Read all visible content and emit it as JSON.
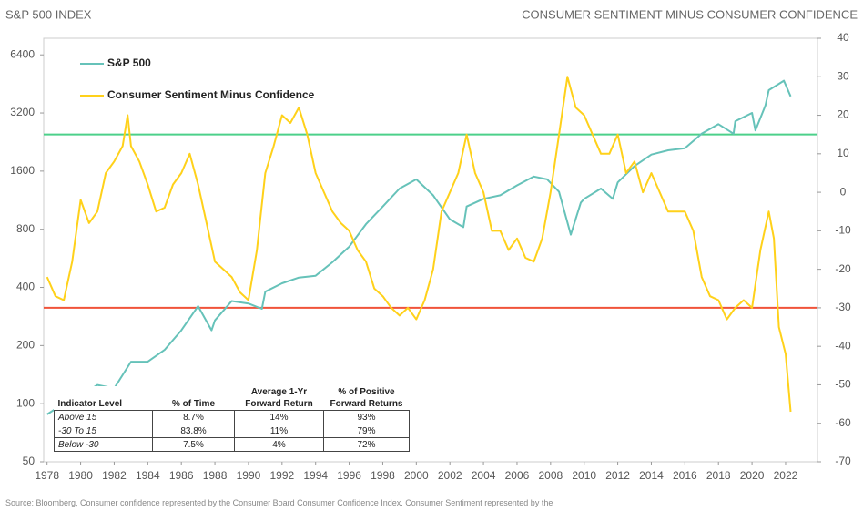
{
  "chart_data": {
    "type": "line",
    "title": "S&P 500 INDEX",
    "y2_title": "CONSUMER SENTIMENT MINUS CONSUMER CONFIDENCE",
    "source": "Source: Bloomberg, Consumer confidence represented by the Consumer Board Consumer Confidence Index. Consumer Sentiment represented by the",
    "xlim": [
      1977.8,
      2023.9
    ],
    "xticks": [
      1978,
      1980,
      1982,
      1984,
      1986,
      1988,
      1990,
      1992,
      1994,
      1996,
      1998,
      2000,
      2002,
      2004,
      2006,
      2008,
      2010,
      2012,
      2014,
      2016,
      2018,
      2020,
      2022
    ],
    "ylim": [
      50,
      7800
    ],
    "yticks": [
      50,
      100,
      200,
      400,
      800,
      1600,
      3200,
      6400
    ],
    "y_scale": "log",
    "y2lim": [
      -70,
      40
    ],
    "y2ticks": [
      -70,
      -60,
      -50,
      -40,
      -30,
      -20,
      -10,
      0,
      10,
      20,
      30,
      40
    ],
    "reference_lines": [
      {
        "value": 15,
        "axis": "y2",
        "color": "#4cd08a"
      },
      {
        "value": -30,
        "axis": "y2",
        "color": "#f0533a"
      }
    ],
    "series": [
      {
        "name": "S&P 500",
        "color": "#66c2b9",
        "axis": "y",
        "x": [
          1978,
          1979,
          1980,
          1981,
          1982,
          1983,
          1984,
          1985,
          1986,
          1987,
          1987.8,
          1988,
          1989,
          1990,
          1990.8,
          1991,
          1992,
          1993,
          1994,
          1995,
          1996,
          1997,
          1998,
          1999,
          2000,
          2001,
          2002,
          2002.8,
          2003,
          2004,
          2005,
          2006,
          2007,
          2007.8,
          2008.5,
          2009.2,
          2009.8,
          2010,
          2011,
          2011.7,
          2012,
          2013,
          2014,
          2015,
          2016,
          2017,
          2018,
          2018.9,
          2019,
          2020,
          2020.2,
          2020.8,
          2021,
          2021.9,
          2022.3
        ],
        "values": [
          88,
          100,
          110,
          125,
          120,
          165,
          165,
          190,
          240,
          320,
          240,
          270,
          340,
          330,
          310,
          380,
          420,
          450,
          460,
          540,
          650,
          850,
          1050,
          1300,
          1450,
          1200,
          900,
          820,
          1050,
          1150,
          1200,
          1350,
          1500,
          1450,
          1250,
          750,
          1100,
          1150,
          1300,
          1150,
          1400,
          1700,
          1950,
          2050,
          2100,
          2500,
          2800,
          2500,
          2900,
          3200,
          2600,
          3500,
          4200,
          4700,
          3900
        ]
      },
      {
        "name": "Consumer Sentiment Minus Confidence",
        "color": "#ffd11a",
        "axis": "y2",
        "x": [
          1978,
          1978.5,
          1979,
          1979.5,
          1980,
          1980.5,
          1981,
          1981.5,
          1982,
          1982.5,
          1982.8,
          1983,
          1983.5,
          1984,
          1984.5,
          1985,
          1985.5,
          1986,
          1986.5,
          1987,
          1987.5,
          1988,
          1988.5,
          1989,
          1989.5,
          1990,
          1990.5,
          1991,
          1991.5,
          1992,
          1992.5,
          1993,
          1993.5,
          1994,
          1994.5,
          1995,
          1995.5,
          1996,
          1996.5,
          1997,
          1997.5,
          1998,
          1998.5,
          1999,
          1999.5,
          2000,
          2000.5,
          2001,
          2001.5,
          2002,
          2002.5,
          2003,
          2003.5,
          2004,
          2004.5,
          2005,
          2005.5,
          2006,
          2006.5,
          2007,
          2007.5,
          2008,
          2008.5,
          2009,
          2009.5,
          2010,
          2010.5,
          2011,
          2011.5,
          2012,
          2012.5,
          2013,
          2013.5,
          2014,
          2014.5,
          2015,
          2015.5,
          2016,
          2016.5,
          2017,
          2017.5,
          2018,
          2018.5,
          2019,
          2019.5,
          2020,
          2020.5,
          2021,
          2021.3,
          2021.6,
          2022,
          2022.3
        ],
        "values": [
          -22,
          -27,
          -28,
          -18,
          -2,
          -8,
          -5,
          5,
          8,
          12,
          20,
          12,
          8,
          2,
          -5,
          -4,
          2,
          5,
          10,
          2,
          -8,
          -18,
          -20,
          -22,
          -26,
          -28,
          -15,
          5,
          12,
          20,
          18,
          22,
          15,
          5,
          0,
          -5,
          -8,
          -10,
          -15,
          -18,
          -25,
          -27,
          -30,
          -32,
          -30,
          -33,
          -28,
          -20,
          -5,
          0,
          5,
          15,
          5,
          0,
          -10,
          -10,
          -15,
          -12,
          -17,
          -18,
          -12,
          0,
          15,
          30,
          22,
          20,
          15,
          10,
          10,
          15,
          5,
          8,
          0,
          5,
          0,
          -5,
          -5,
          -5,
          -10,
          -22,
          -27,
          -28,
          -33,
          -30,
          -28,
          -30,
          -15,
          -5,
          -12,
          -35,
          -42,
          -57
        ]
      }
    ],
    "table": {
      "columns": [
        "Indicator Level",
        "% of Time",
        "Average 1-Yr Forward Return",
        "% of Positive Forward Returns"
      ],
      "rows": [
        [
          "Above 15",
          "8.7%",
          "14%",
          "93%"
        ],
        [
          "-30 To 15",
          "83.8%",
          "11%",
          "79%"
        ],
        [
          "Below -30",
          "7.5%",
          "4%",
          "72%"
        ]
      ]
    }
  }
}
